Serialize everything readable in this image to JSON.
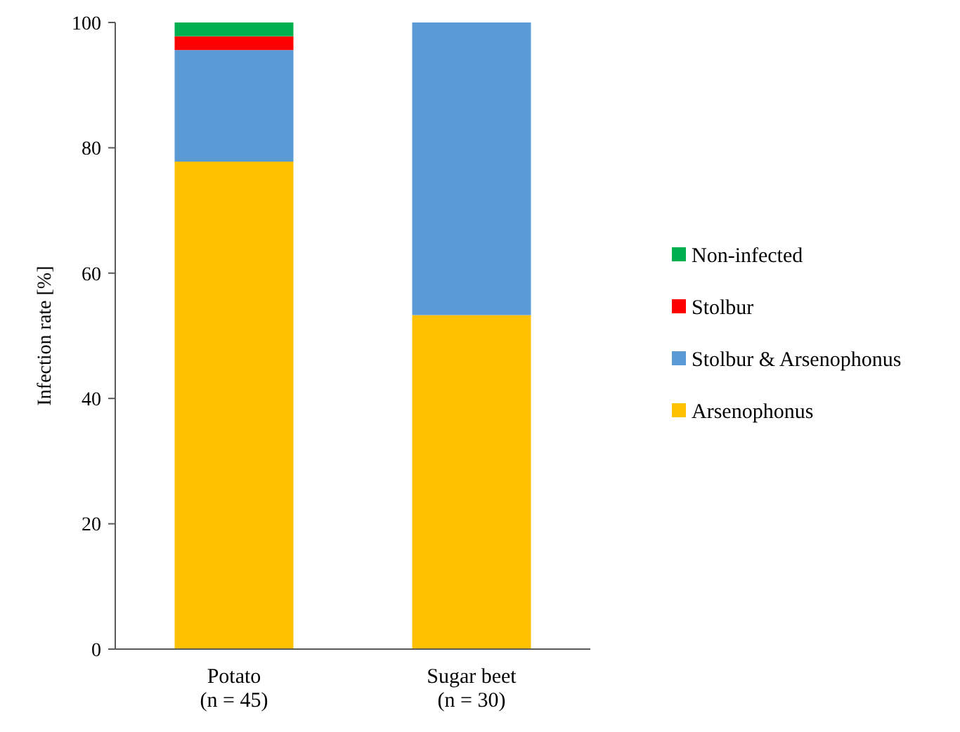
{
  "chart_data": {
    "type": "bar",
    "stacked": true,
    "ylabel": "Infection rate [%]",
    "categories": [
      "Potato\n(n = 45)",
      "Sugar beet\n(n = 30)"
    ],
    "series": [
      {
        "name": "Arsenophonus",
        "color": "#ffc000",
        "values": [
          77.8,
          53.3
        ]
      },
      {
        "name": "Stolbur & Arsenophonus",
        "color": "#5b9bd5",
        "values": [
          17.8,
          46.7
        ]
      },
      {
        "name": "Stolbur",
        "color": "#ff0000",
        "values": [
          2.2,
          0
        ]
      },
      {
        "name": "Non-infected",
        "color": "#00b050",
        "values": [
          2.2,
          0
        ]
      }
    ],
    "ylim": [
      0,
      100
    ],
    "yticks": [
      0,
      20,
      40,
      60,
      80,
      100
    ],
    "legend": "right"
  }
}
